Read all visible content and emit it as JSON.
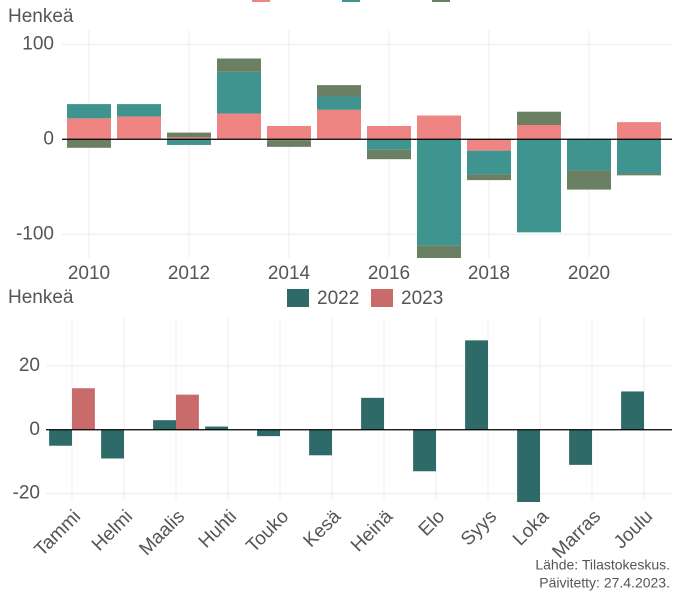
{
  "chart_data": [
    {
      "type": "stacked_bar",
      "ylabel": "Henkeä",
      "x": [
        2010,
        2011,
        2012,
        2013,
        2014,
        2015,
        2016,
        2017,
        2018,
        2019,
        2020,
        2021
      ],
      "series": [
        {
          "color": "#ee8582",
          "values": [
            22,
            24,
            2,
            27,
            14,
            31,
            14,
            25,
            -12,
            15,
            0,
            18
          ]
        },
        {
          "color": "#3f9490",
          "values": [
            15,
            13,
            -6,
            44,
            -1,
            14,
            -11,
            -112,
            -25,
            -98,
            -33,
            -36
          ]
        },
        {
          "color": "#6b7f63",
          "values": [
            -9,
            0,
            5,
            14,
            -7,
            12,
            -10,
            -13,
            -6,
            14,
            -20,
            -2
          ]
        }
      ],
      "xlim": [
        2009.46,
        2021.66
      ],
      "xticks": [
        2010,
        2012,
        2014,
        2016,
        2018,
        2020
      ],
      "ylim": [
        -125,
        115
      ],
      "yticks": [
        100,
        0,
        -100
      ],
      "grid": true
    },
    {
      "type": "grouped_bar",
      "ylabel": "Henkeä",
      "categories": [
        "Tammi",
        "Helmi",
        "Maalis",
        "Huhti",
        "Touko",
        "Kesä",
        "Heinä",
        "Elo",
        "Syys",
        "Loka",
        "Marras",
        "Joulu"
      ],
      "series": [
        {
          "name": "2022",
          "color": "#2e6b68",
          "values": [
            -5,
            -9,
            3,
            1,
            -2,
            -8,
            10,
            -13,
            28,
            -23,
            -11,
            12
          ]
        },
        {
          "name": "2023",
          "color": "#c96b6b",
          "values": [
            13,
            null,
            11,
            null,
            null,
            null,
            null,
            null,
            null,
            null,
            null,
            null
          ]
        }
      ],
      "ylim": [
        -22,
        35
      ],
      "yticks": [
        20,
        0,
        -20
      ],
      "grid": true,
      "legend": "top",
      "notes": [
        "Lähde: Tilastokeskus.",
        "Päivitetty: 27.4.2023."
      ]
    }
  ]
}
